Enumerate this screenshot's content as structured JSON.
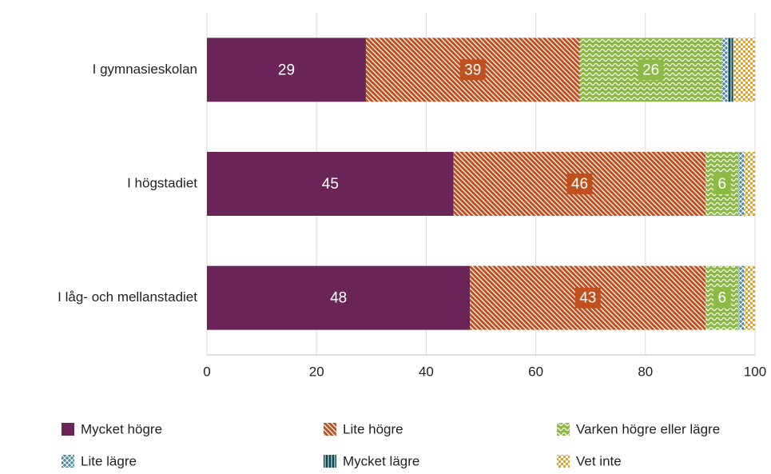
{
  "chart_data": {
    "type": "stacked_barh",
    "categories": [
      "I gymnasieskolan",
      "I högstadiet",
      "I låg- och mellanstadiet"
    ],
    "series": [
      {
        "name": "Mycket högre",
        "color": "#6b2458",
        "pattern": "solid",
        "labels": true,
        "values": [
          29,
          45,
          48
        ]
      },
      {
        "name": "Lite högre",
        "color": "#c0501e",
        "pattern": "diagonal",
        "labels": true,
        "values": [
          39,
          46,
          43
        ]
      },
      {
        "name": "Varken högre eller lägre",
        "color": "#8cba44",
        "pattern": "wave",
        "labels": true,
        "values": [
          26,
          6,
          6
        ]
      },
      {
        "name": "Lite lägre",
        "color": "#4a8a9c",
        "pattern": "cross",
        "labels": false,
        "values": [
          1,
          1,
          1
        ]
      },
      {
        "name": "Mycket lägre",
        "color": "#0d4a4f",
        "pattern": "vstripe",
        "labels": false,
        "values": [
          1,
          0,
          0
        ]
      },
      {
        "name": "Vet inte",
        "color": "#e8a020",
        "pattern": "check",
        "labels": false,
        "values": [
          4,
          2,
          2
        ]
      }
    ],
    "xlim": [
      0,
      100
    ],
    "xticks": [
      0,
      20,
      40,
      60,
      80,
      100
    ],
    "grid": true
  }
}
